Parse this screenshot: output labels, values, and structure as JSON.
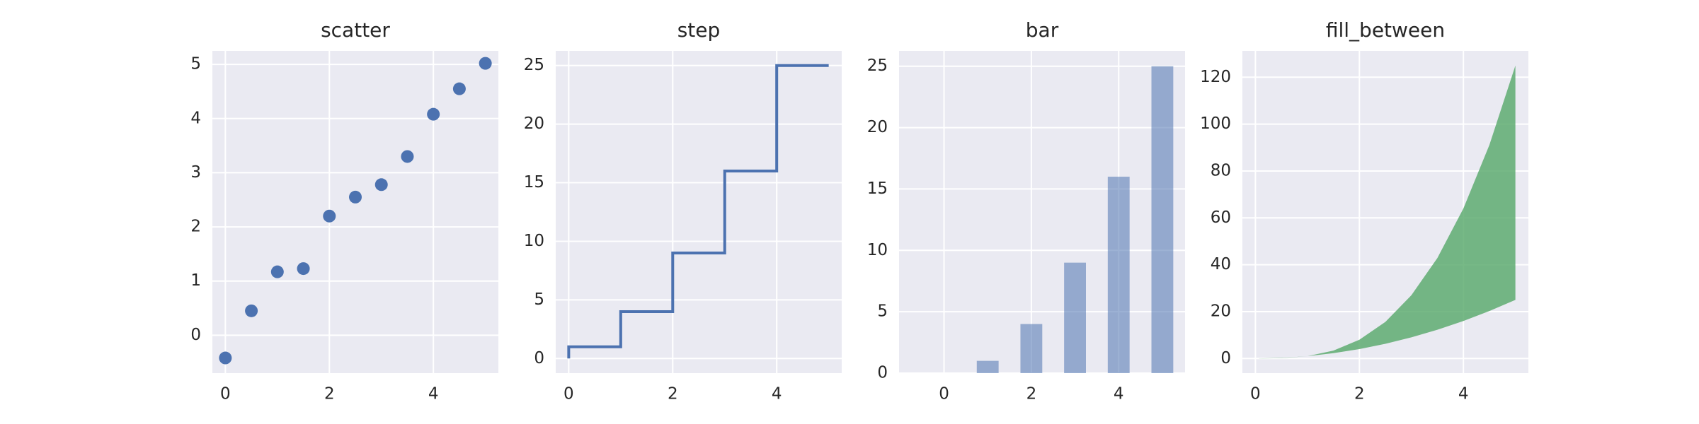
{
  "chart_data": [
    {
      "type": "scatter",
      "title": "scatter",
      "color": "#4c72b0",
      "x": [
        0,
        0.5,
        1,
        1.5,
        2,
        2.5,
        3,
        3.5,
        4,
        4.5,
        5
      ],
      "values": [
        -0.42,
        0.45,
        1.17,
        1.23,
        2.2,
        2.55,
        2.78,
        3.3,
        4.08,
        4.55,
        5.02
      ],
      "xlim": [
        -0.25,
        5.25
      ],
      "ylim": [
        -0.7,
        5.25
      ],
      "xticks": [
        0,
        2,
        4
      ],
      "yticks": [
        0,
        1,
        2,
        3,
        4,
        5
      ],
      "grid": true
    },
    {
      "type": "step",
      "title": "step",
      "color": "#4c72b0",
      "x": [
        0,
        1,
        2,
        3,
        4,
        5
      ],
      "values": [
        0,
        1,
        4,
        9,
        16,
        25
      ],
      "xlim": [
        -0.25,
        5.25
      ],
      "ylim": [
        -1.25,
        26.25
      ],
      "xticks": [
        0,
        2,
        4
      ],
      "yticks": [
        0,
        5,
        10,
        15,
        20,
        25
      ],
      "grid": true
    },
    {
      "type": "bar",
      "title": "bar",
      "color": "#4c72b0",
      "x": [
        0,
        1,
        2,
        3,
        4,
        5
      ],
      "values": [
        0,
        1,
        4,
        9,
        16,
        25
      ],
      "xlim": [
        -1.03,
        5.52
      ],
      "ylim": [
        0,
        26.25
      ],
      "xticks": [
        0,
        2,
        4
      ],
      "yticks": [
        0,
        5,
        10,
        15,
        20,
        25
      ],
      "grid": true
    },
    {
      "type": "fill_between",
      "title": "fill_between",
      "color": "#55a868",
      "x": [
        0,
        0.5,
        1,
        1.5,
        2,
        2.5,
        3,
        3.5,
        4,
        4.5,
        5
      ],
      "y1": [
        0,
        0.25,
        1,
        2.25,
        4,
        6.25,
        9,
        12.25,
        16,
        20.25,
        25
      ],
      "y2": [
        0,
        0.125,
        1,
        3.375,
        8,
        15.625,
        27,
        42.875,
        64,
        91.125,
        125
      ],
      "xlim": [
        -0.25,
        5.25
      ],
      "ylim": [
        -6.25,
        131.25
      ],
      "xticks": [
        0,
        2,
        4
      ],
      "yticks": [
        0,
        20,
        40,
        60,
        80,
        100,
        120
      ],
      "grid": true
    }
  ]
}
